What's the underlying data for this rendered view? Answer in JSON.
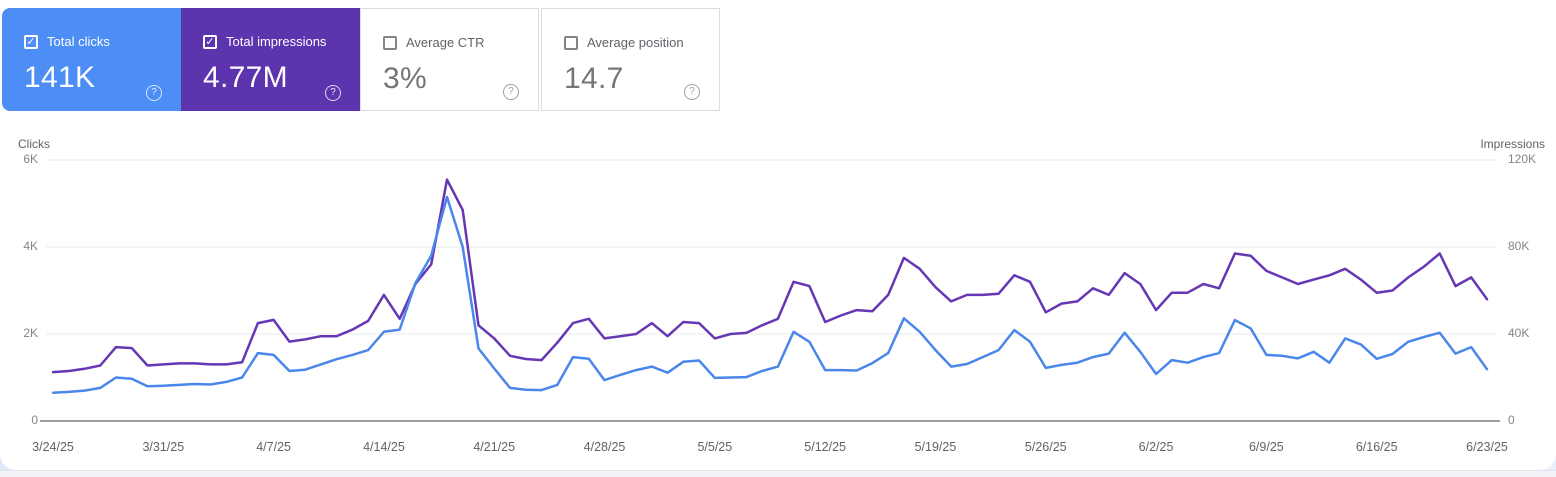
{
  "icons": {
    "check": "✓",
    "help": "?"
  },
  "colors": {
    "clicks_card_bg": "#4c8df6",
    "impressions_card_bg": "#5c34ae",
    "clicks_line": "#4b87ea",
    "impressions_line": "#6637b5",
    "gridline": "#e8eaed",
    "zero_axis": "#9aa0a6"
  },
  "cards": [
    {
      "label": "Total clicks",
      "value": "141K",
      "checked": true
    },
    {
      "label": "Total impressions",
      "value": "4.77M",
      "checked": true
    },
    {
      "label": "Average CTR",
      "value": "3%",
      "checked": false
    },
    {
      "label": "Average position",
      "value": "14.7",
      "checked": false
    }
  ],
  "chart_data": {
    "type": "line",
    "grid": true,
    "x_tick_labels": [
      "3/24/25",
      "3/31/25",
      "4/7/25",
      "4/14/25",
      "4/21/25",
      "4/28/25",
      "5/5/25",
      "5/12/25",
      "5/19/25",
      "5/26/25",
      "6/2/25",
      "6/9/25",
      "6/16/25",
      "6/23/25"
    ],
    "y_left": {
      "title": "Clicks",
      "ticks": [
        "6K",
        "4K",
        "2K",
        "0"
      ],
      "max": 6000
    },
    "y_right": {
      "title": "Impressions",
      "ticks": [
        "120K",
        "80K",
        "40K",
        "0"
      ],
      "max": 120000
    },
    "series": [
      {
        "name": "Clicks",
        "axis": "left",
        "color": "#4b87ea",
        "values": [
          650,
          670,
          700,
          760,
          1000,
          970,
          800,
          810,
          830,
          850,
          840,
          900,
          1000,
          1560,
          1520,
          1150,
          1180,
          1300,
          1420,
          1520,
          1630,
          2050,
          2100,
          3170,
          3800,
          5150,
          4000,
          1670,
          1210,
          760,
          720,
          710,
          830,
          1470,
          1430,
          940,
          1060,
          1170,
          1250,
          1110,
          1360,
          1390,
          990,
          1000,
          1010,
          1150,
          1250,
          2050,
          1820,
          1170,
          1170,
          1160,
          1330,
          1560,
          2360,
          2050,
          1630,
          1250,
          1310,
          1470,
          1630,
          2090,
          1820,
          1220,
          1290,
          1340,
          1470,
          1550,
          2030,
          1590,
          1080,
          1400,
          1340,
          1470,
          1560,
          2320,
          2130,
          1520,
          1500,
          1440,
          1590,
          1340,
          1900,
          1760,
          1430,
          1540,
          1820,
          1930,
          2030,
          1550,
          1700,
          1190
        ]
      },
      {
        "name": "Impressions",
        "axis": "right",
        "color": "#6637b5",
        "values": [
          22500,
          23000,
          24000,
          25500,
          34000,
          33500,
          25500,
          26000,
          26500,
          26500,
          26000,
          26000,
          27000,
          45000,
          46500,
          36500,
          37500,
          39000,
          39000,
          42000,
          46000,
          58000,
          47000,
          63000,
          72000,
          111000,
          97000,
          44000,
          38000,
          30000,
          28500,
          28000,
          36000,
          45000,
          47000,
          38000,
          39000,
          40000,
          45000,
          39000,
          45500,
          45000,
          38000,
          40000,
          40500,
          44000,
          47000,
          64000,
          62000,
          45500,
          48500,
          51000,
          50500,
          58000,
          75000,
          70000,
          61500,
          55000,
          58000,
          58000,
          58500,
          67000,
          64000,
          50000,
          54000,
          55000,
          61000,
          58000,
          68000,
          63000,
          51000,
          59000,
          59000,
          63000,
          61000,
          77000,
          76000,
          69000,
          66000,
          63000,
          65000,
          67000,
          70000,
          65000,
          59000,
          60000,
          66000,
          71000,
          77000,
          62000,
          66000,
          56000
        ]
      }
    ]
  }
}
